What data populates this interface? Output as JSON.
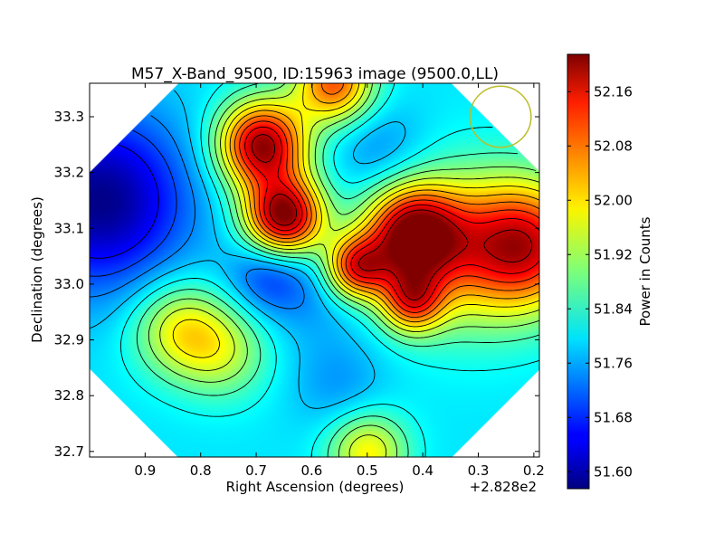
{
  "chart_data": {
    "type": "heatmap",
    "title": "M57_X-Band_9500, ID:15963 image (9500.0,LL)",
    "xlabel": "Right Ascension (degrees)",
    "ylabel": "Declination (degrees)",
    "x_offset_label": "+2.828e2",
    "x_range": [
      1.0,
      0.19
    ],
    "y_range": [
      32.69,
      33.36
    ],
    "x_ticks": [
      {
        "value": 0.9,
        "label": "0.9"
      },
      {
        "value": 0.8,
        "label": "0.8"
      },
      {
        "value": 0.7,
        "label": "0.7"
      },
      {
        "value": 0.6,
        "label": "0.6"
      },
      {
        "value": 0.5,
        "label": "0.5"
      },
      {
        "value": 0.4,
        "label": "0.4"
      },
      {
        "value": 0.3,
        "label": "0.3"
      },
      {
        "value": 0.2,
        "label": "0.2"
      }
    ],
    "y_ticks": [
      {
        "value": 32.7,
        "label": "32.7"
      },
      {
        "value": 32.8,
        "label": "32.8"
      },
      {
        "value": 32.9,
        "label": "32.9"
      },
      {
        "value": 33.0,
        "label": "33.0"
      },
      {
        "value": 33.1,
        "label": "33.1"
      },
      {
        "value": 33.2,
        "label": "33.2"
      },
      {
        "value": 33.3,
        "label": "33.3"
      }
    ],
    "colorbar": {
      "label": "Power in Counts",
      "range": [
        51.575,
        52.215
      ],
      "colormap": "jet",
      "ticks": [
        {
          "value": 51.6,
          "label": "51.60"
        },
        {
          "value": 51.68,
          "label": "51.68"
        },
        {
          "value": 51.76,
          "label": "51.76"
        },
        {
          "value": 51.84,
          "label": "51.84"
        },
        {
          "value": 51.92,
          "label": "51.92"
        },
        {
          "value": 52.0,
          "label": "52.00"
        },
        {
          "value": 52.08,
          "label": "52.08"
        },
        {
          "value": 52.16,
          "label": "52.16"
        }
      ]
    },
    "field_baseline": 51.8,
    "features": [
      {
        "ra": 0.69,
        "dec": 33.25,
        "amp": 0.4,
        "sigma": 0.055
      },
      {
        "ra": 0.65,
        "dec": 33.12,
        "amp": 0.42,
        "sigma": 0.05
      },
      {
        "ra": 0.56,
        "dec": 33.36,
        "amp": 0.28,
        "sigma": 0.05
      },
      {
        "ra": 0.42,
        "dec": 33.09,
        "amp": 0.36,
        "sigma": 0.06
      },
      {
        "ra": 0.52,
        "dec": 33.03,
        "amp": 0.3,
        "sigma": 0.04
      },
      {
        "ra": 0.42,
        "dec": 32.97,
        "amp": 0.24,
        "sigma": 0.04
      },
      {
        "ra": 0.21,
        "dec": 33.07,
        "amp": 0.3,
        "sigma": 0.08
      },
      {
        "ra": 0.33,
        "dec": 33.06,
        "amp": 0.18,
        "sigma": 0.1
      },
      {
        "ra": 0.84,
        "dec": 32.92,
        "amp": 0.16,
        "sigma": 0.06
      },
      {
        "ra": 0.76,
        "dec": 32.88,
        "amp": 0.12,
        "sigma": 0.06
      },
      {
        "ra": 0.5,
        "dec": 32.7,
        "amp": 0.18,
        "sigma": 0.05
      },
      {
        "ra": 0.48,
        "dec": 33.24,
        "amp": -0.06,
        "sigma": 0.06
      },
      {
        "ra": 0.68,
        "dec": 33.02,
        "amp": -0.1,
        "sigma": 0.05
      },
      {
        "ra": 0.98,
        "dec": 33.15,
        "amp": -0.22,
        "sigma": 0.11
      },
      {
        "ra": 0.6,
        "dec": 32.99,
        "amp": -0.05,
        "sigma": 0.07
      },
      {
        "ra": 0.55,
        "dec": 32.82,
        "amp": -0.05,
        "sigma": 0.06
      }
    ],
    "contour_levels": [
      51.66,
      51.7,
      51.74,
      51.78,
      51.82,
      51.86,
      51.9,
      51.94,
      51.98,
      52.02,
      52.06,
      52.1,
      52.14,
      52.18
    ],
    "beam_circle": {
      "ra": 0.26,
      "dec": 33.3,
      "radius_deg": 0.055,
      "color": "#bcbc2a"
    },
    "colors": {
      "nodata": "#ffffff",
      "contour": "#000000"
    }
  }
}
